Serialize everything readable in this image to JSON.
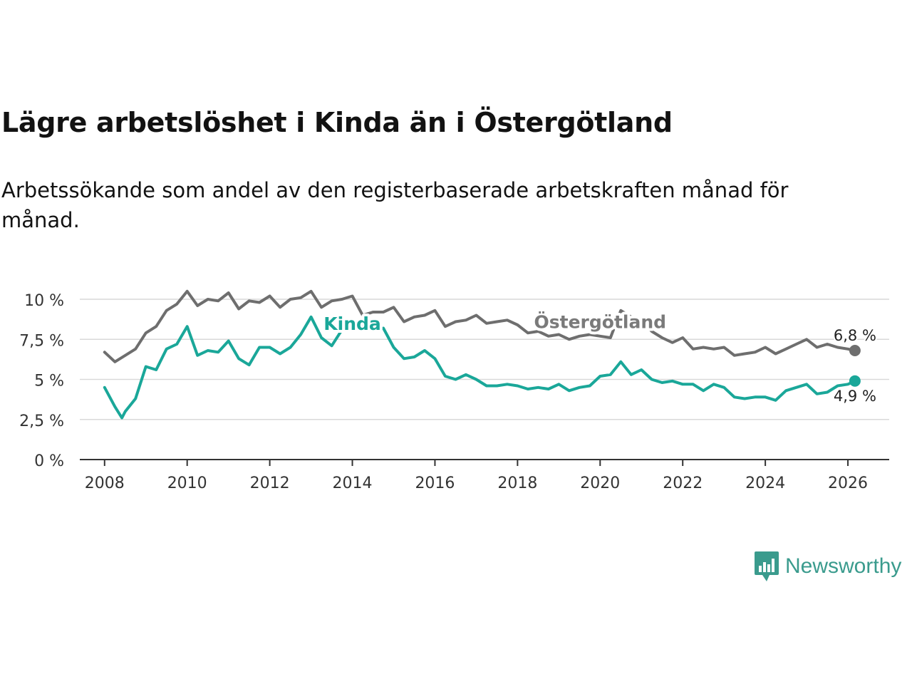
{
  "header": {
    "title": "Lägre arbetslöshet i Kinda än i Östergötland",
    "subtitle": "Arbetssökande som andel av den registerbaserade arbetskraften månad för månad."
  },
  "brand": {
    "name": "Newsworthy",
    "icon": "newsworthy-logo-icon",
    "color": "#3a9b8d"
  },
  "chart_data": {
    "type": "line",
    "title": "Lägre arbetslöshet i Kinda än i Östergötland",
    "xlabel": "",
    "ylabel": "",
    "ylim": [
      0,
      10
    ],
    "xlim": [
      2007.4,
      2027.0
    ],
    "y_ticks": [
      0,
      2.5,
      5,
      7.5,
      10
    ],
    "y_tick_labels": [
      "0 %",
      "2,5 %",
      "5 %",
      "7,5 %",
      "10 %"
    ],
    "x_ticks": [
      2008,
      2010,
      2012,
      2014,
      2016,
      2018,
      2020,
      2022,
      2024,
      2026
    ],
    "x_tick_labels": [
      "2008",
      "2010",
      "2012",
      "2014",
      "2016",
      "2018",
      "2020",
      "2022",
      "2024",
      "2026"
    ],
    "grid": true,
    "series": [
      {
        "name": "Östergötland",
        "color": "#6e6e6e",
        "label_color": "#7a7a7a",
        "end_label": "6,8 %",
        "x": [
          2008.0,
          2008.25,
          2008.5,
          2008.75,
          2009.0,
          2009.25,
          2009.5,
          2009.75,
          2010.0,
          2010.25,
          2010.5,
          2010.75,
          2011.0,
          2011.25,
          2011.5,
          2011.75,
          2012.0,
          2012.25,
          2012.5,
          2012.75,
          2013.0,
          2013.25,
          2013.5,
          2013.75,
          2014.0,
          2014.25,
          2014.5,
          2014.75,
          2015.0,
          2015.25,
          2015.5,
          2015.75,
          2016.0,
          2016.25,
          2016.5,
          2016.75,
          2017.0,
          2017.25,
          2017.5,
          2017.75,
          2018.0,
          2018.25,
          2018.5,
          2018.75,
          2019.0,
          2019.25,
          2019.5,
          2019.75,
          2020.0,
          2020.25,
          2020.5,
          2020.75,
          2021.0,
          2021.25,
          2021.5,
          2021.75,
          2022.0,
          2022.25,
          2022.5,
          2022.75,
          2023.0,
          2023.25,
          2023.5,
          2023.75,
          2024.0,
          2024.25,
          2024.5,
          2024.75,
          2025.0,
          2025.25,
          2025.5,
          2025.75,
          2026.0,
          2026.17
        ],
        "values": [
          6.7,
          6.1,
          6.5,
          6.9,
          7.9,
          8.3,
          9.3,
          9.7,
          10.5,
          9.6,
          10.0,
          9.9,
          10.4,
          9.4,
          9.9,
          9.8,
          10.2,
          9.5,
          10.0,
          10.1,
          10.5,
          9.5,
          9.9,
          10.0,
          10.2,
          9.0,
          9.2,
          9.2,
          9.5,
          8.6,
          8.9,
          9.0,
          9.3,
          8.3,
          8.6,
          8.7,
          9.0,
          8.5,
          8.6,
          8.7,
          8.4,
          7.9,
          8.0,
          7.7,
          7.8,
          7.5,
          7.7,
          7.8,
          7.7,
          7.6,
          9.3,
          8.9,
          8.7,
          8.0,
          7.6,
          7.3,
          7.6,
          6.9,
          7.0,
          6.9,
          7.0,
          6.5,
          6.6,
          6.7,
          7.0,
          6.6,
          6.9,
          7.2,
          7.5,
          7.0,
          7.2,
          7.0,
          6.9,
          6.8
        ]
      },
      {
        "name": "Kinda",
        "color": "#1aa799",
        "label_color": "#1aa799",
        "end_label": "4,9 %",
        "x": [
          2008.0,
          2008.25,
          2008.42,
          2008.5,
          2008.75,
          2009.0,
          2009.25,
          2009.5,
          2009.75,
          2010.0,
          2010.25,
          2010.5,
          2010.75,
          2011.0,
          2011.25,
          2011.5,
          2011.75,
          2012.0,
          2012.25,
          2012.5,
          2012.75,
          2013.0,
          2013.25,
          2013.5,
          2013.75,
          2014.0,
          2014.25,
          2014.5,
          2014.75,
          2015.0,
          2015.25,
          2015.5,
          2015.75,
          2016.0,
          2016.25,
          2016.5,
          2016.75,
          2017.0,
          2017.25,
          2017.5,
          2017.75,
          2018.0,
          2018.25,
          2018.5,
          2018.75,
          2019.0,
          2019.25,
          2019.5,
          2019.75,
          2020.0,
          2020.25,
          2020.5,
          2020.75,
          2021.0,
          2021.25,
          2021.5,
          2021.75,
          2022.0,
          2022.25,
          2022.5,
          2022.75,
          2023.0,
          2023.25,
          2023.5,
          2023.75,
          2024.0,
          2024.25,
          2024.5,
          2024.75,
          2025.0,
          2025.25,
          2025.5,
          2025.75,
          2026.0,
          2026.17
        ],
        "values": [
          4.5,
          3.3,
          2.6,
          3.0,
          3.8,
          5.8,
          5.6,
          6.9,
          7.2,
          8.3,
          6.5,
          6.8,
          6.7,
          7.4,
          6.3,
          5.9,
          7.0,
          7.0,
          6.6,
          7.0,
          7.8,
          8.9,
          7.6,
          7.1,
          8.1,
          8.4,
          8.3,
          8.0,
          8.2,
          7.0,
          6.3,
          6.4,
          6.8,
          6.3,
          5.2,
          5.0,
          5.3,
          5.0,
          4.6,
          4.6,
          4.7,
          4.6,
          4.4,
          4.5,
          4.4,
          4.7,
          4.3,
          4.5,
          4.6,
          5.2,
          5.3,
          6.1,
          5.3,
          5.6,
          5.0,
          4.8,
          4.9,
          4.7,
          4.7,
          4.3,
          4.7,
          4.5,
          3.9,
          3.8,
          3.9,
          3.9,
          3.7,
          4.3,
          4.5,
          4.7,
          4.1,
          4.2,
          4.6,
          4.7,
          4.9
        ]
      }
    ],
    "annotations": [
      {
        "text": "Kinda",
        "series": "Kinda",
        "x": 2014.0,
        "y": 8.1
      },
      {
        "text": "Östergötland",
        "series": "Östergötland",
        "x": 2020.0,
        "y": 8.2
      }
    ]
  }
}
